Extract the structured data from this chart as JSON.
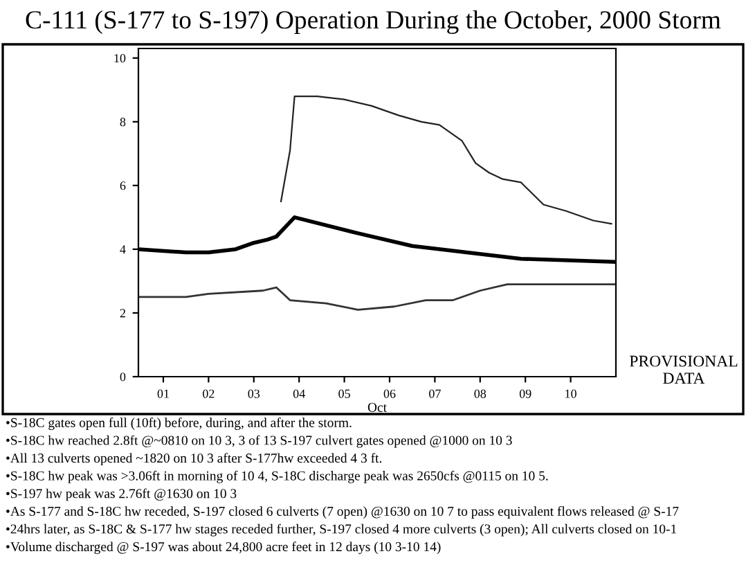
{
  "chart_data": {
    "type": "line",
    "title": "C-111 (S-177 to S-197) Operation During the October, 2000 Storm",
    "xlabel": "Oct",
    "x": [
      0.45,
      1.5,
      2.0,
      2.6,
      3.0,
      3.3,
      3.5,
      3.7,
      3.9,
      5.3,
      6.5,
      7.7,
      8.9,
      11.0
    ],
    "series": [
      {
        "color": "#000000",
        "values": [
          4.0,
          3.9,
          3.9,
          4.0,
          4.2,
          4.3,
          4.4,
          4.7,
          5.0,
          4.5,
          4.1,
          3.9,
          3.7,
          3.6
        ]
      },
      {
        "color": "#333333",
        "x": [
          0.45,
          1.5,
          2.0,
          3.2,
          3.5,
          3.8,
          4.6,
          5.3,
          6.1,
          6.8,
          7.4,
          8.0,
          8.6,
          11.0
        ],
        "values": [
          2.5,
          2.5,
          2.6,
          2.7,
          2.8,
          2.4,
          2.3,
          2.1,
          2.2,
          2.4,
          2.4,
          2.7,
          2.9,
          2.9
        ]
      },
      {
        "color": "#222222",
        "x": [
          3.6,
          3.8,
          3.9,
          4.4,
          5.0,
          5.6,
          6.2,
          6.7,
          7.1,
          7.6,
          7.9,
          8.2,
          8.5,
          8.9,
          9.4,
          9.9,
          10.5,
          10.9
        ],
        "values": [
          5.5,
          7.1,
          8.8,
          8.8,
          8.7,
          8.5,
          8.2,
          8.0,
          7.9,
          7.4,
          6.7,
          6.4,
          6.2,
          6.1,
          5.4,
          5.2,
          4.9,
          4.8
        ]
      }
    ],
    "xlim": [
      0.45,
      11.0
    ],
    "ylim": [
      0,
      10.3
    ],
    "xticks": [
      {
        "value": 1,
        "label": "01"
      },
      {
        "value": 2,
        "label": "02"
      },
      {
        "value": 3,
        "label": "03"
      },
      {
        "value": 4,
        "label": "04"
      },
      {
        "value": 5,
        "label": "05"
      },
      {
        "value": 6,
        "label": "06"
      },
      {
        "value": 7,
        "label": "07"
      },
      {
        "value": 8,
        "label": "08"
      },
      {
        "value": 9,
        "label": "09"
      },
      {
        "value": 10,
        "label": "10"
      }
    ],
    "yticks": [
      0,
      2,
      4,
      6,
      8,
      10
    ],
    "grid": false,
    "marker": "none",
    "line_style": "solid",
    "annotations": [
      "PROVISIONAL DATA",
      "•S-18C gates open full (10ft) before, during, and after the storm.",
      "•S-18C hw reached 2.8ft @~0810 on 10 3, 3 of 13 S-197 culvert gates opened @1000 on 10 3",
      "•All 13 culverts opened ~1820 on 10 3 after S-177hw exceeded 4 3 ft.",
      "•S-18C hw peak was >3.06ft in morning of 10 4, S-18C discharge peak was 2650cfs @0115 on 10 5.",
      "•S-197 hw peak was 2.76ft @1630 on 10 3",
      "•As S-177 and S-18C hw receded, S-197 closed 6 culverts (7 open) @1630 on 10 7 to pass equivalent flows released @ S-17",
      "•24hrs later, as S-18C & S-177 hw stages receded further, S-197 closed 4 more culverts (3 open); All culverts closed on 10-1",
      "•Volume discharged @ S-197 was about 24,800 acre feet in 12 days (10 3-10 14)"
    ]
  }
}
